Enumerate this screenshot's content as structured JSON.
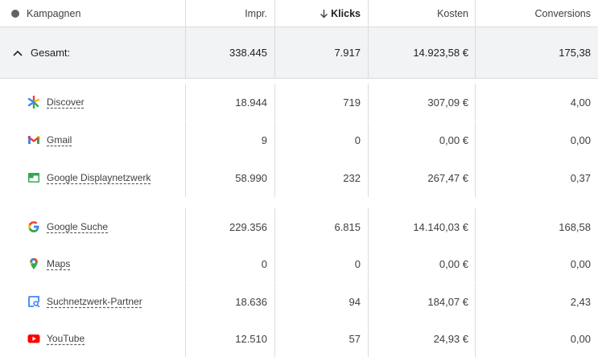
{
  "header": {
    "campaigns": "Kampagnen",
    "impressions": "Impr.",
    "clicks": "Klicks",
    "costs": "Kosten",
    "conversions": "Conversions"
  },
  "total": {
    "label": "Gesamt:",
    "impressions": "338.445",
    "clicks": "7.917",
    "costs": "14.923,58 €",
    "conversions": "175,38"
  },
  "rows": [
    {
      "name": "Discover",
      "icon": "discover-icon",
      "impressions": "18.944",
      "clicks": "719",
      "costs": "307,09 €",
      "conversions": "4,00"
    },
    {
      "name": "Gmail",
      "icon": "gmail-icon",
      "impressions": "9",
      "clicks": "0",
      "costs": "0,00 €",
      "conversions": "0,00"
    },
    {
      "name": "Google Displaynetzwerk",
      "icon": "display-network-icon",
      "impressions": "58.990",
      "clicks": "232",
      "costs": "267,47 €",
      "conversions": "0,37"
    },
    {
      "name": "Google Suche",
      "icon": "google-search-icon",
      "impressions": "229.356",
      "clicks": "6.815",
      "costs": "14.140,03 €",
      "conversions": "168,58"
    },
    {
      "name": "Maps",
      "icon": "maps-pin-icon",
      "impressions": "0",
      "clicks": "0",
      "costs": "0,00 €",
      "conversions": "0,00"
    },
    {
      "name": "Suchnetzwerk-Partner",
      "icon": "search-partner-icon",
      "impressions": "18.636",
      "clicks": "94",
      "costs": "184,07 €",
      "conversions": "2,43"
    },
    {
      "name": "YouTube",
      "icon": "youtube-icon",
      "impressions": "12.510",
      "clicks": "57",
      "costs": "24,93 €",
      "conversions": "0,00"
    }
  ],
  "colors": {
    "header_bg": "#ffffff",
    "total_bg": "#f1f3f4",
    "border": "#dadce0",
    "text": "#202124"
  }
}
